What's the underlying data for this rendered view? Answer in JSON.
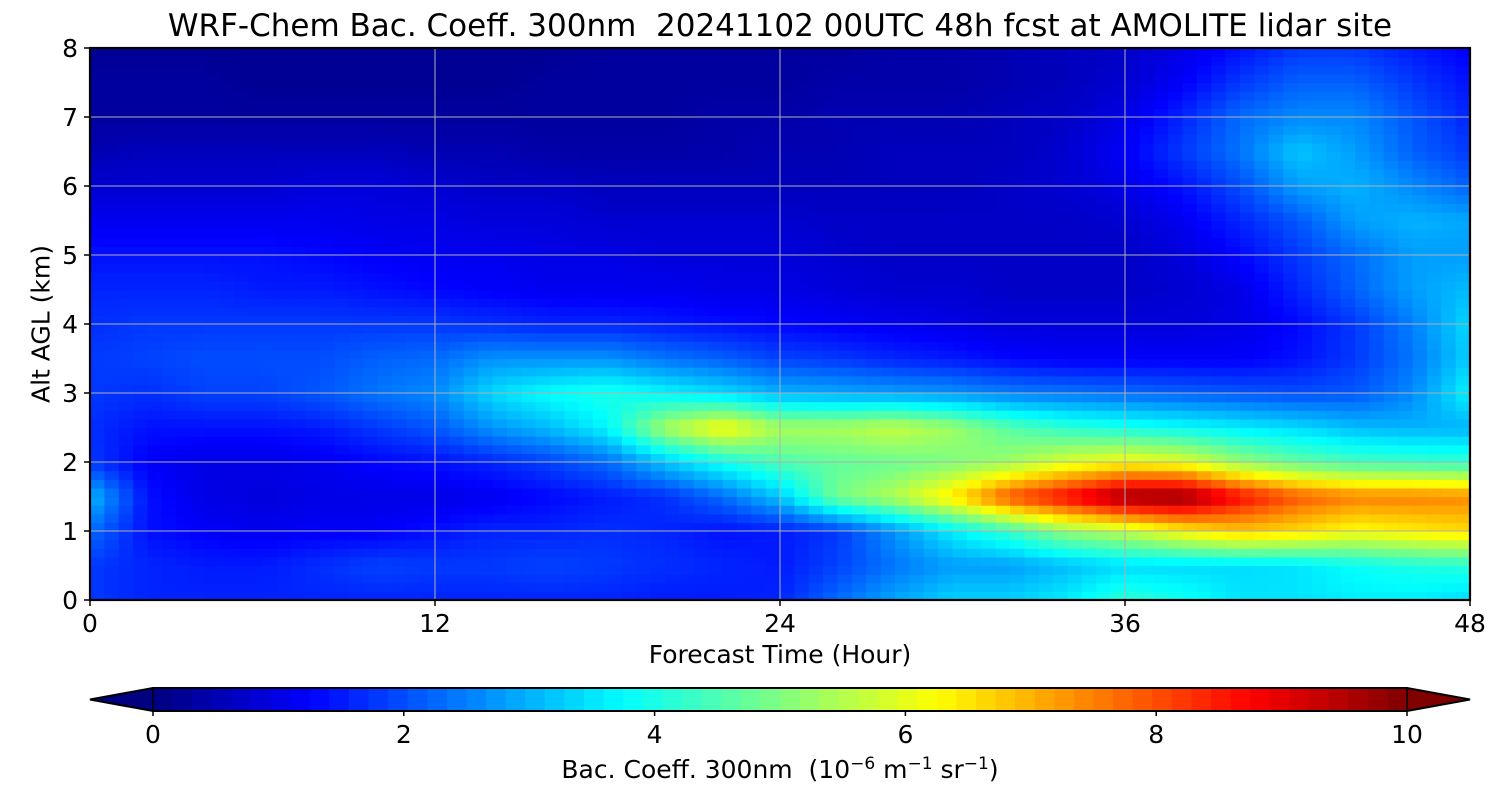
{
  "chart_data": {
    "type": "heatmap",
    "title": "WRF-Chem Bac. Coeff. 300nm  20241102 00UTC 48h fcst at AMOLITE lidar site",
    "xlabel": "Forecast Time (Hour)",
    "ylabel": "Alt AGL (km)",
    "xlim": [
      0,
      48
    ],
    "ylim": [
      0,
      8
    ],
    "x_ticks": [
      "0",
      "12",
      "24",
      "36",
      "48"
    ],
    "y_ticks": [
      "0",
      "1",
      "2",
      "3",
      "4",
      "5",
      "6",
      "7",
      "8"
    ],
    "grid": true,
    "colormap": "jet",
    "colorbar": {
      "orientation": "horizontal",
      "extend": "both",
      "range": [
        0,
        10
      ],
      "ticks": [
        "0",
        "2",
        "4",
        "6",
        "8",
        "10"
      ],
      "label_main": "Bac. Coeff. 300nm  (10",
      "label_exp1": "−6",
      "label_mid": " m",
      "label_exp2": "−1",
      "label_mid2": " sr",
      "label_exp3": "−1",
      "label_end": ")"
    },
    "x_hours": [
      0,
      2,
      4,
      6,
      8,
      10,
      12,
      14,
      16,
      18,
      20,
      22,
      24,
      26,
      28,
      30,
      32,
      34,
      36,
      38,
      40,
      42,
      44,
      46,
      48
    ],
    "y_km": [
      0,
      0.5,
      1,
      1.5,
      2,
      2.5,
      3,
      3.5,
      4,
      4.5,
      5,
      5.5,
      6,
      6.5,
      7,
      7.5,
      8
    ],
    "values": [
      [
        1.8,
        1.6,
        1.6,
        1.6,
        1.6,
        1.6,
        1.6,
        1.6,
        1.6,
        1.6,
        1.5,
        1.5,
        1.6,
        2.3,
        2.9,
        3.3,
        3.3,
        3.6,
        4.2,
        3.9,
        3.5,
        3.5,
        3.6,
        3.6,
        3.4
      ],
      [
        1.8,
        1.6,
        1.5,
        1.5,
        1.7,
        1.9,
        1.8,
        1.8,
        1.9,
        1.8,
        1.7,
        1.6,
        1.5,
        1.9,
        2.4,
        2.8,
        2.8,
        3.1,
        3.4,
        3.4,
        3.4,
        3.5,
        3.8,
        4.0,
        4.1
      ],
      [
        2.3,
        1.4,
        1.2,
        1.1,
        1.2,
        1.2,
        1.4,
        1.6,
        1.6,
        1.7,
        1.6,
        1.4,
        1.5,
        1.8,
        2.7,
        3.6,
        4.3,
        5.2,
        5.6,
        6.3,
        6.8,
        6.6,
        6.2,
        6.4,
        6.6
      ],
      [
        3.1,
        1.4,
        1.0,
        0.9,
        1.0,
        1.0,
        1.0,
        1.1,
        1.3,
        1.5,
        1.7,
        2.3,
        3.2,
        4.9,
        5.5,
        6.5,
        8.0,
        8.8,
        9.8,
        9.9,
        8.7,
        7.9,
        7.5,
        7.5,
        7.4
      ],
      [
        1.8,
        1.2,
        1.0,
        1.0,
        1.1,
        1.3,
        1.4,
        1.6,
        1.9,
        2.3,
        3.2,
        3.9,
        4.5,
        4.7,
        4.8,
        5.0,
        5.3,
        5.9,
        6.2,
        6.0,
        5.2,
        4.7,
        4.4,
        4.3,
        4.2
      ],
      [
        1.7,
        1.4,
        1.4,
        1.4,
        1.5,
        1.8,
        2.1,
        2.7,
        3.1,
        3.7,
        5.4,
        6.3,
        5.4,
        5.4,
        5.7,
        5.3,
        4.6,
        4.2,
        4.0,
        3.8,
        3.6,
        3.4,
        3.1,
        3.0,
        3.0
      ],
      [
        1.8,
        1.7,
        1.9,
        1.9,
        2.1,
        2.4,
        2.6,
        3.4,
        3.8,
        4.0,
        3.7,
        3.4,
        3.0,
        2.9,
        2.8,
        2.7,
        2.5,
        2.4,
        2.3,
        2.2,
        2.1,
        2.0,
        2.1,
        2.6,
        3.7
      ],
      [
        1.8,
        1.9,
        2.0,
        2.0,
        2.0,
        2.2,
        2.3,
        2.7,
        2.7,
        2.7,
        2.4,
        2.2,
        1.9,
        1.8,
        1.6,
        1.5,
        1.3,
        1.2,
        1.2,
        1.2,
        1.2,
        1.4,
        1.8,
        2.4,
        3.3
      ],
      [
        1.7,
        1.8,
        1.8,
        1.8,
        1.8,
        1.8,
        1.8,
        1.7,
        1.6,
        1.6,
        1.5,
        1.4,
        1.3,
        1.2,
        1.1,
        1.0,
        0.9,
        0.9,
        0.9,
        0.9,
        1.0,
        1.3,
        1.8,
        2.5,
        3.4
      ],
      [
        1.6,
        1.6,
        1.6,
        1.5,
        1.5,
        1.4,
        1.3,
        1.2,
        1.1,
        1.1,
        1.1,
        1.0,
        1.0,
        0.9,
        0.8,
        0.8,
        0.7,
        0.7,
        0.7,
        0.8,
        1.0,
        1.6,
        2.2,
        2.8,
        3.1
      ],
      [
        1.4,
        1.4,
        1.4,
        1.4,
        1.3,
        1.2,
        1.1,
        1.1,
        1.0,
        1.0,
        0.9,
        0.9,
        0.9,
        0.8,
        0.7,
        0.7,
        0.7,
        0.7,
        0.7,
        0.9,
        1.3,
        1.8,
        2.3,
        2.8,
        2.8
      ],
      [
        1.1,
        1.1,
        1.1,
        1.1,
        1.1,
        1.0,
        1.0,
        0.9,
        0.9,
        0.8,
        0.8,
        0.8,
        0.8,
        0.7,
        0.7,
        0.7,
        0.7,
        0.7,
        0.8,
        1.1,
        1.6,
        2.1,
        2.8,
        3.0,
        2.9
      ],
      [
        0.8,
        0.8,
        0.8,
        0.8,
        0.9,
        0.9,
        0.8,
        0.7,
        0.7,
        0.6,
        0.6,
        0.6,
        0.6,
        0.6,
        0.6,
        0.6,
        0.7,
        0.8,
        1.0,
        1.4,
        2.0,
        2.8,
        3.0,
        2.6,
        2.2
      ],
      [
        0.5,
        0.6,
        0.6,
        0.6,
        0.6,
        0.6,
        0.5,
        0.5,
        0.4,
        0.4,
        0.4,
        0.4,
        0.5,
        0.5,
        0.6,
        0.6,
        0.6,
        0.8,
        1.2,
        1.8,
        2.4,
        3.2,
        2.8,
        2.2,
        1.8
      ],
      [
        0.3,
        0.3,
        0.3,
        0.3,
        0.3,
        0.3,
        0.3,
        0.3,
        0.3,
        0.3,
        0.3,
        0.4,
        0.4,
        0.5,
        0.5,
        0.5,
        0.6,
        0.7,
        1.0,
        1.6,
        2.3,
        2.6,
        2.6,
        2.1,
        1.6
      ],
      [
        0.3,
        0.3,
        0.3,
        0.2,
        0.2,
        0.2,
        0.2,
        0.2,
        0.3,
        0.3,
        0.3,
        0.3,
        0.3,
        0.4,
        0.4,
        0.4,
        0.5,
        0.6,
        0.8,
        1.2,
        1.8,
        2.2,
        2.2,
        1.8,
        1.4
      ],
      [
        0.2,
        0.2,
        0.2,
        0.2,
        0.2,
        0.2,
        0.2,
        0.2,
        0.2,
        0.3,
        0.3,
        0.3,
        0.3,
        0.3,
        0.4,
        0.4,
        0.5,
        0.6,
        0.7,
        1.0,
        1.4,
        1.8,
        1.8,
        1.5,
        1.2
      ]
    ]
  }
}
